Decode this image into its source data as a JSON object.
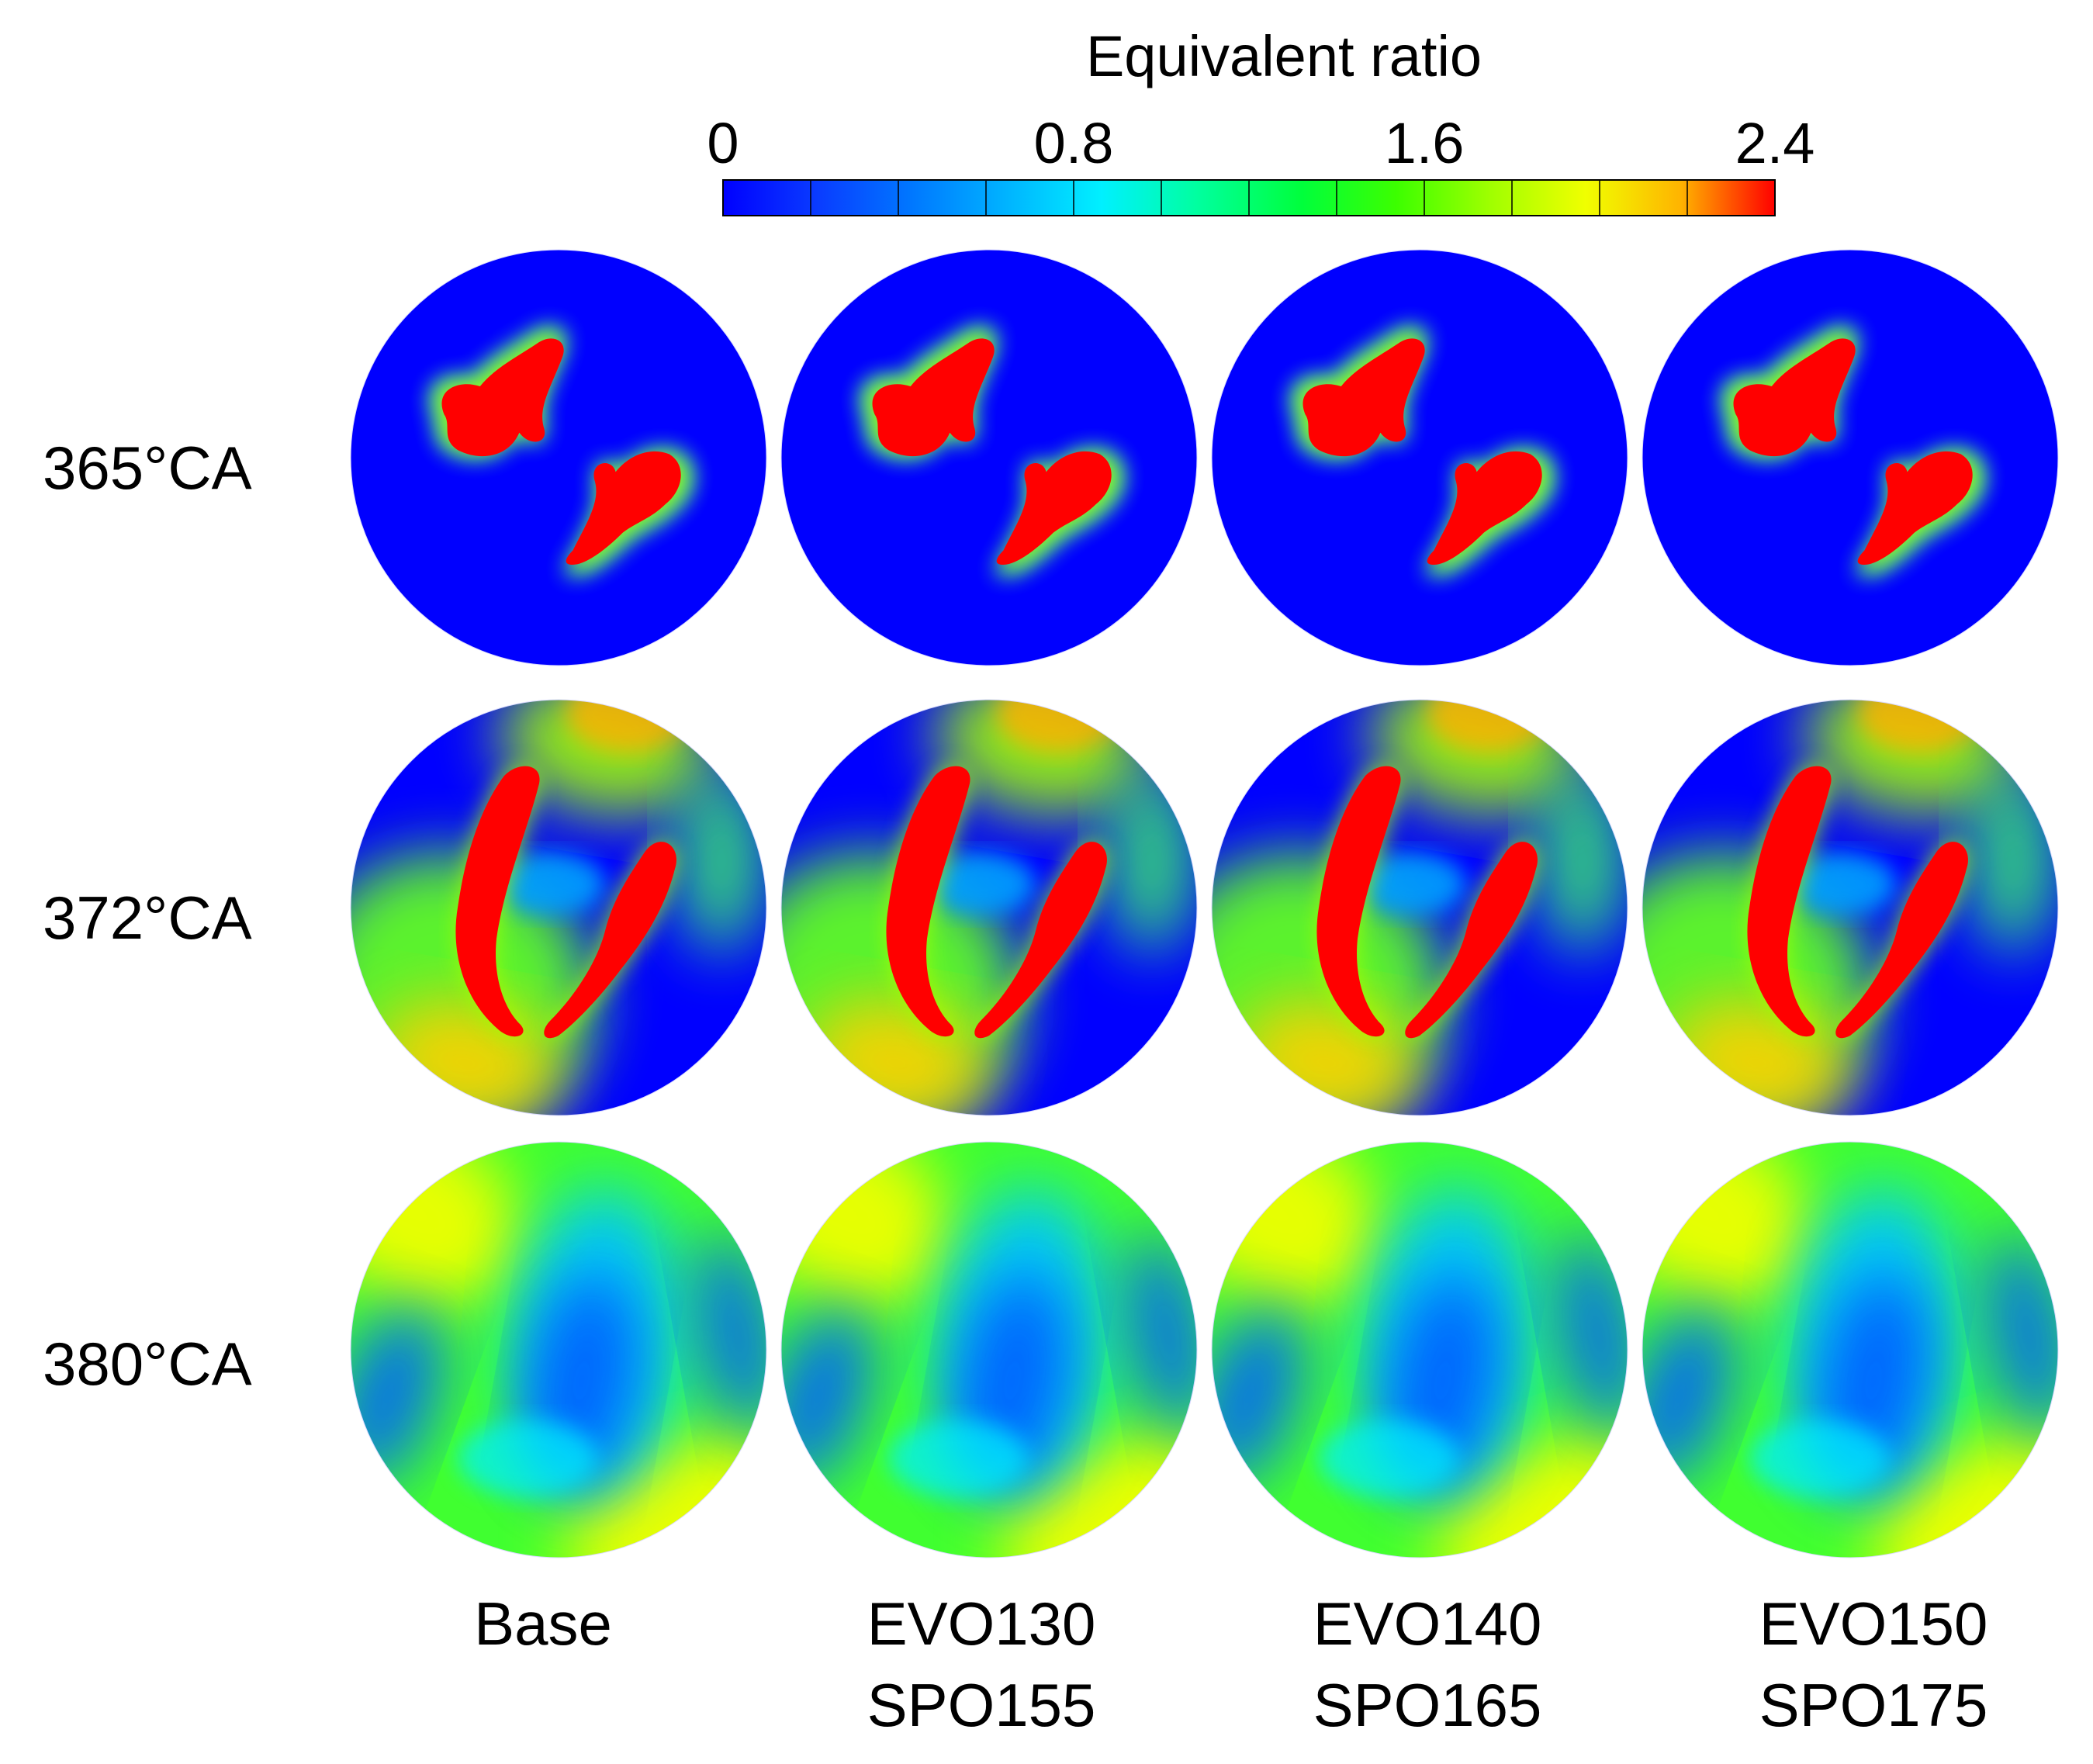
{
  "colorbar": {
    "title": "Equivalent ratio",
    "ticks": [
      "0",
      "0.8",
      "1.6",
      "2.4"
    ],
    "min": 0,
    "max": 2.4,
    "levels": 12,
    "colors": [
      "#0000ff",
      "#0a3cff",
      "#0078ff",
      "#00b4ff",
      "#00f0ff",
      "#00ffa0",
      "#00ff3c",
      "#3cff00",
      "#a0ff00",
      "#f0ff00",
      "#ffb400",
      "#ff5000",
      "#ff0000"
    ]
  },
  "rows": [
    {
      "label": "365°CA"
    },
    {
      "label": "372°CA"
    },
    {
      "label": "380°CA"
    }
  ],
  "columns": [
    {
      "line1": "Base",
      "line2": ""
    },
    {
      "line1": "EVO130",
      "line2": "SPO155"
    },
    {
      "line1": "EVO140",
      "line2": "SPO165"
    },
    {
      "line1": "EVO150",
      "line2": "SPO175"
    }
  ]
}
